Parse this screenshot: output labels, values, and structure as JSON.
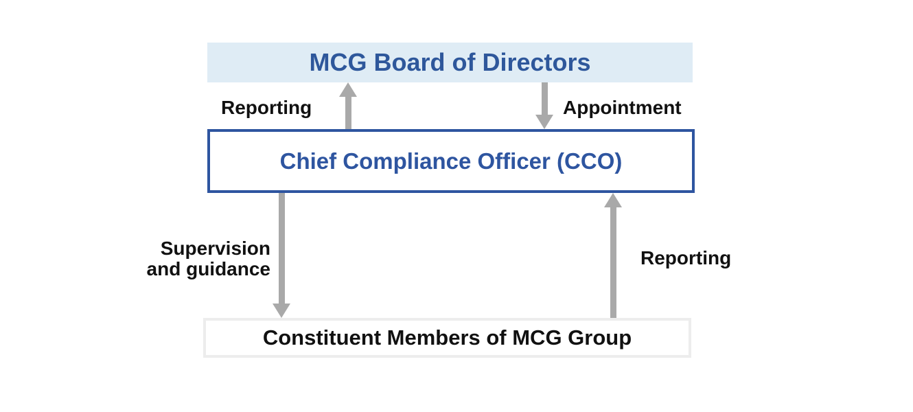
{
  "diagram": {
    "nodes": {
      "board": {
        "label": "MCG Board of Directors",
        "bg_color": "#dfecf5",
        "text_color": "#2e579b"
      },
      "cco": {
        "label": "Chief Compliance Officer (CCO)",
        "border_color": "#2e55a0",
        "text_color": "#2e55a0"
      },
      "members": {
        "label": "Constituent Members of MCG Group",
        "border_color": "#ededed",
        "text_color": "#111111"
      }
    },
    "edges": {
      "cco_to_board": {
        "label": "Reporting",
        "direction": "up"
      },
      "board_to_cco": {
        "label": "Appointment",
        "direction": "down"
      },
      "cco_to_members": {
        "label_line1": "Supervision",
        "label_line2": "and guidance",
        "direction": "down"
      },
      "members_to_cco": {
        "label": "Reporting",
        "direction": "up"
      }
    },
    "arrow_color": "#a9a9a9"
  }
}
